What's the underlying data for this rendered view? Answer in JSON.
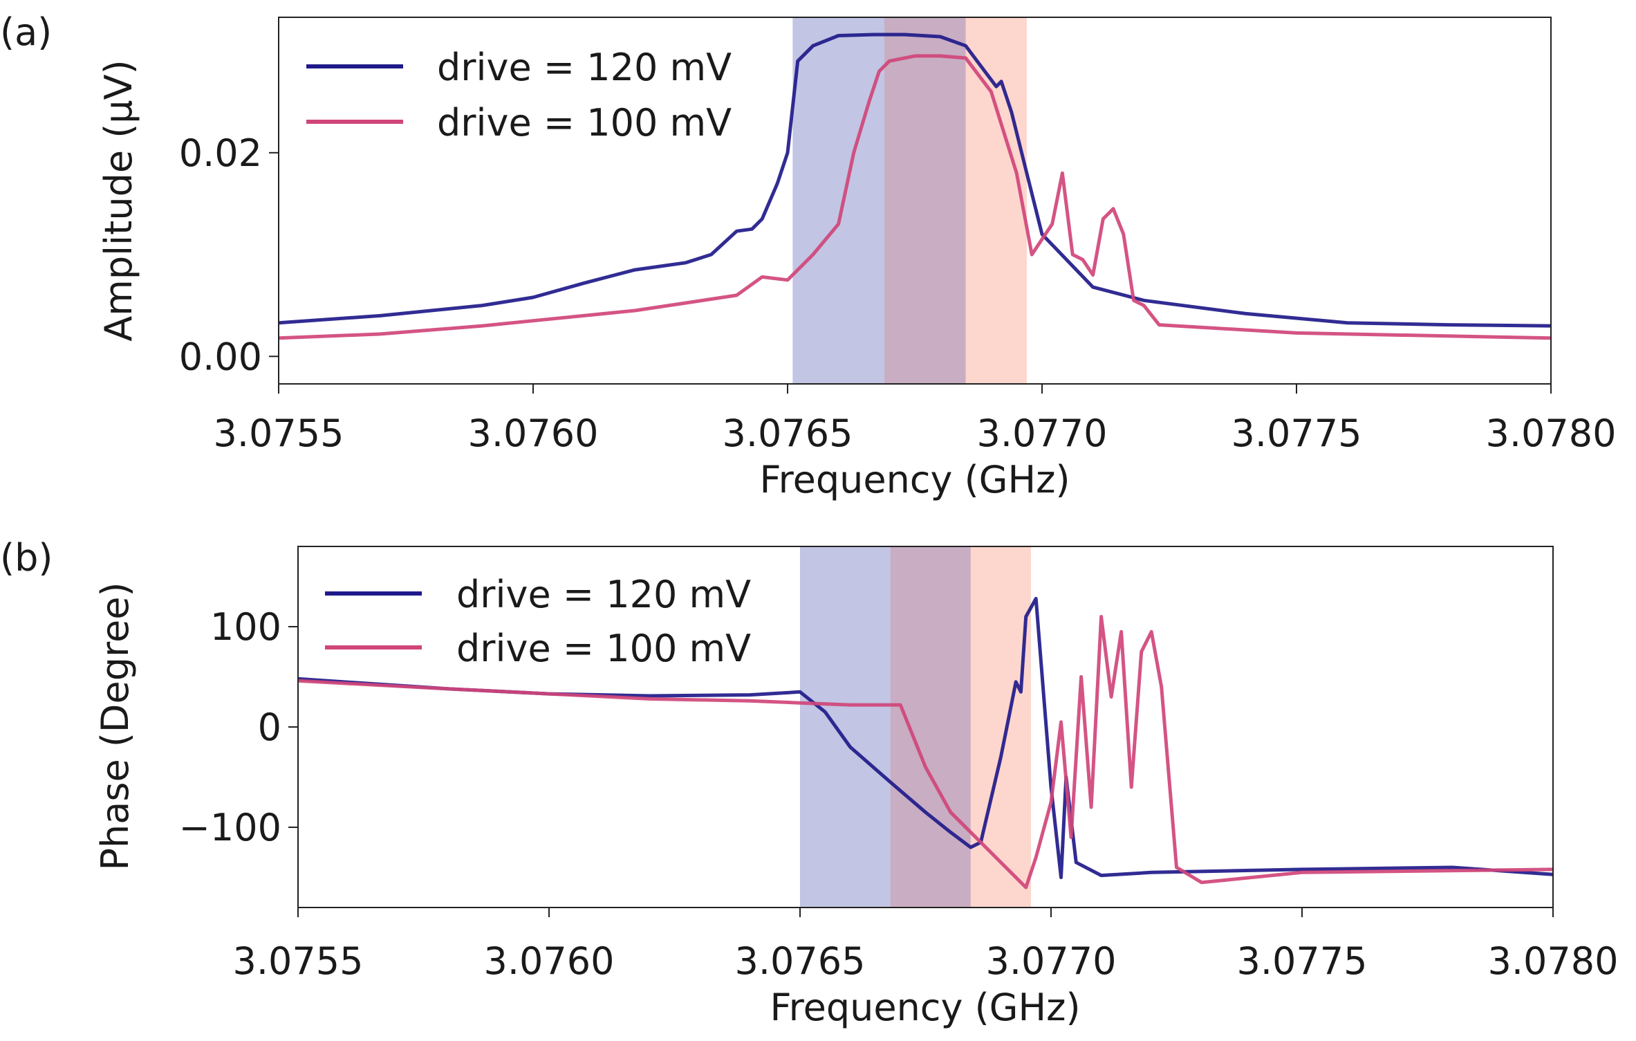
{
  "figure": {
    "panels": [
      "(a)",
      "(b)"
    ]
  },
  "chart_data": [
    {
      "panel_label": "(a)",
      "type": "line",
      "xlabel": "Frequency (GHz)",
      "ylabel": "Amplitude (μV)",
      "xlim": [
        3.0755,
        3.078
      ],
      "ylim": [
        -0.0027,
        0.0333
      ],
      "xticks": [
        "3.0755",
        "3.0760",
        "3.0765",
        "3.0770",
        "3.0775",
        "3.0780"
      ],
      "xtick_values": [
        3.0755,
        3.076,
        3.0765,
        3.077,
        3.0775,
        3.078
      ],
      "yticks": [
        "0.00",
        "0.02"
      ],
      "ytick_values": [
        0.0,
        0.02
      ],
      "legend_position": "upper-left",
      "shaded_bands": [
        {
          "x0": 3.07651,
          "x1": 3.07669,
          "color": "#8f95cc",
          "opacity": 0.55
        },
        {
          "x0": 3.07669,
          "x1": 3.07685,
          "color": "#9a6a92",
          "opacity": 0.55
        },
        {
          "x0": 3.07685,
          "x1": 3.07697,
          "color": "#fcb4a4",
          "opacity": 0.55
        }
      ],
      "series": [
        {
          "name": "drive = 120 mV",
          "color": "#1f1a8a",
          "x": [
            3.0755,
            3.0757,
            3.0759,
            3.076,
            3.0761,
            3.0762,
            3.0763,
            3.07635,
            3.0764,
            3.07643,
            3.07645,
            3.07648,
            3.0765,
            3.07652,
            3.07655,
            3.0766,
            3.07667,
            3.07673,
            3.0768,
            3.07685,
            3.07688,
            3.07691,
            3.07692,
            3.07694,
            3.07697,
            3.077,
            3.0771,
            3.0772,
            3.0774,
            3.0776,
            3.0778,
            3.078
          ],
          "y": [
            0.0033,
            0.004,
            0.005,
            0.0058,
            0.0072,
            0.0085,
            0.0092,
            0.01,
            0.0123,
            0.0125,
            0.0135,
            0.017,
            0.02,
            0.029,
            0.0305,
            0.0315,
            0.0316,
            0.0316,
            0.0314,
            0.0305,
            0.0285,
            0.0265,
            0.027,
            0.024,
            0.018,
            0.012,
            0.0068,
            0.0055,
            0.0042,
            0.0033,
            0.0031,
            0.003
          ]
        },
        {
          "name": "drive = 100 mV",
          "color": "#d0457a",
          "x": [
            3.0755,
            3.0757,
            3.0759,
            3.076,
            3.0762,
            3.0764,
            3.07645,
            3.0765,
            3.07655,
            3.0766,
            3.07663,
            3.07666,
            3.07668,
            3.0767,
            3.07675,
            3.0768,
            3.07685,
            3.0769,
            3.07695,
            3.07698,
            3.077,
            3.07702,
            3.07704,
            3.07706,
            3.07708,
            3.0771,
            3.07712,
            3.07714,
            3.07716,
            3.07718,
            3.0772,
            3.07723,
            3.0775,
            3.078
          ],
          "y": [
            0.0018,
            0.0022,
            0.003,
            0.0035,
            0.0045,
            0.006,
            0.0078,
            0.0075,
            0.01,
            0.013,
            0.02,
            0.025,
            0.028,
            0.029,
            0.0295,
            0.0295,
            0.0293,
            0.026,
            0.018,
            0.01,
            0.0115,
            0.013,
            0.018,
            0.01,
            0.0095,
            0.008,
            0.0135,
            0.0145,
            0.012,
            0.0055,
            0.005,
            0.0031,
            0.0023,
            0.0018
          ]
        }
      ]
    },
    {
      "panel_label": "(b)",
      "type": "line",
      "xlabel": "Frequency (GHz)",
      "ylabel": "Phase (Degree)",
      "xlim": [
        3.0755,
        3.078
      ],
      "ylim": [
        -180,
        180
      ],
      "xticks": [
        "3.0755",
        "3.0760",
        "3.0765",
        "3.0770",
        "3.0775",
        "3.0780"
      ],
      "xtick_values": [
        3.0755,
        3.076,
        3.0765,
        3.077,
        3.0775,
        3.078
      ],
      "yticks": [
        "−100",
        "0",
        "100"
      ],
      "ytick_values": [
        -100,
        0,
        100
      ],
      "legend_position": "upper-left",
      "shaded_bands": [
        {
          "x0": 3.0765,
          "x1": 3.07668,
          "color": "#8f95cc",
          "opacity": 0.55
        },
        {
          "x0": 3.07668,
          "x1": 3.07684,
          "color": "#9a6a92",
          "opacity": 0.55
        },
        {
          "x0": 3.07684,
          "x1": 3.07696,
          "color": "#fcb4a4",
          "opacity": 0.55
        }
      ],
      "series": [
        {
          "name": "drive = 120 mV",
          "color": "#1f1a8a",
          "x": [
            3.0755,
            3.0758,
            3.076,
            3.0762,
            3.0764,
            3.0765,
            3.07655,
            3.0766,
            3.07668,
            3.07675,
            3.0768,
            3.07684,
            3.07686,
            3.0769,
            3.07691,
            3.07693,
            3.07694,
            3.07695,
            3.07697,
            3.077,
            3.07702,
            3.07703,
            3.07705,
            3.0771,
            3.0772,
            3.0775,
            3.0778,
            3.078
          ],
          "y": [
            48,
            38,
            33,
            31,
            32,
            35,
            15,
            -20,
            -55,
            -85,
            -105,
            -120,
            -115,
            -30,
            -5,
            45,
            35,
            110,
            128,
            -60,
            -150,
            -50,
            -135,
            -148,
            -145,
            -142,
            -140,
            -147
          ]
        },
        {
          "name": "drive = 100 mV",
          "color": "#d0457a",
          "x": [
            3.0755,
            3.0758,
            3.076,
            3.0762,
            3.0764,
            3.0765,
            3.0766,
            3.0767,
            3.07675,
            3.0768,
            3.07685,
            3.07695,
            3.07697,
            3.077,
            3.07702,
            3.07704,
            3.07706,
            3.07708,
            3.0771,
            3.07712,
            3.07714,
            3.07716,
            3.07718,
            3.0772,
            3.07722,
            3.07725,
            3.0773,
            3.0775,
            3.078
          ],
          "y": [
            46,
            38,
            33,
            28,
            26,
            24,
            22,
            22,
            -40,
            -85,
            -110,
            -160,
            -130,
            -75,
            5,
            -110,
            50,
            -80,
            110,
            30,
            95,
            -60,
            75,
            95,
            40,
            -140,
            -155,
            -145,
            -142
          ]
        }
      ]
    }
  ]
}
